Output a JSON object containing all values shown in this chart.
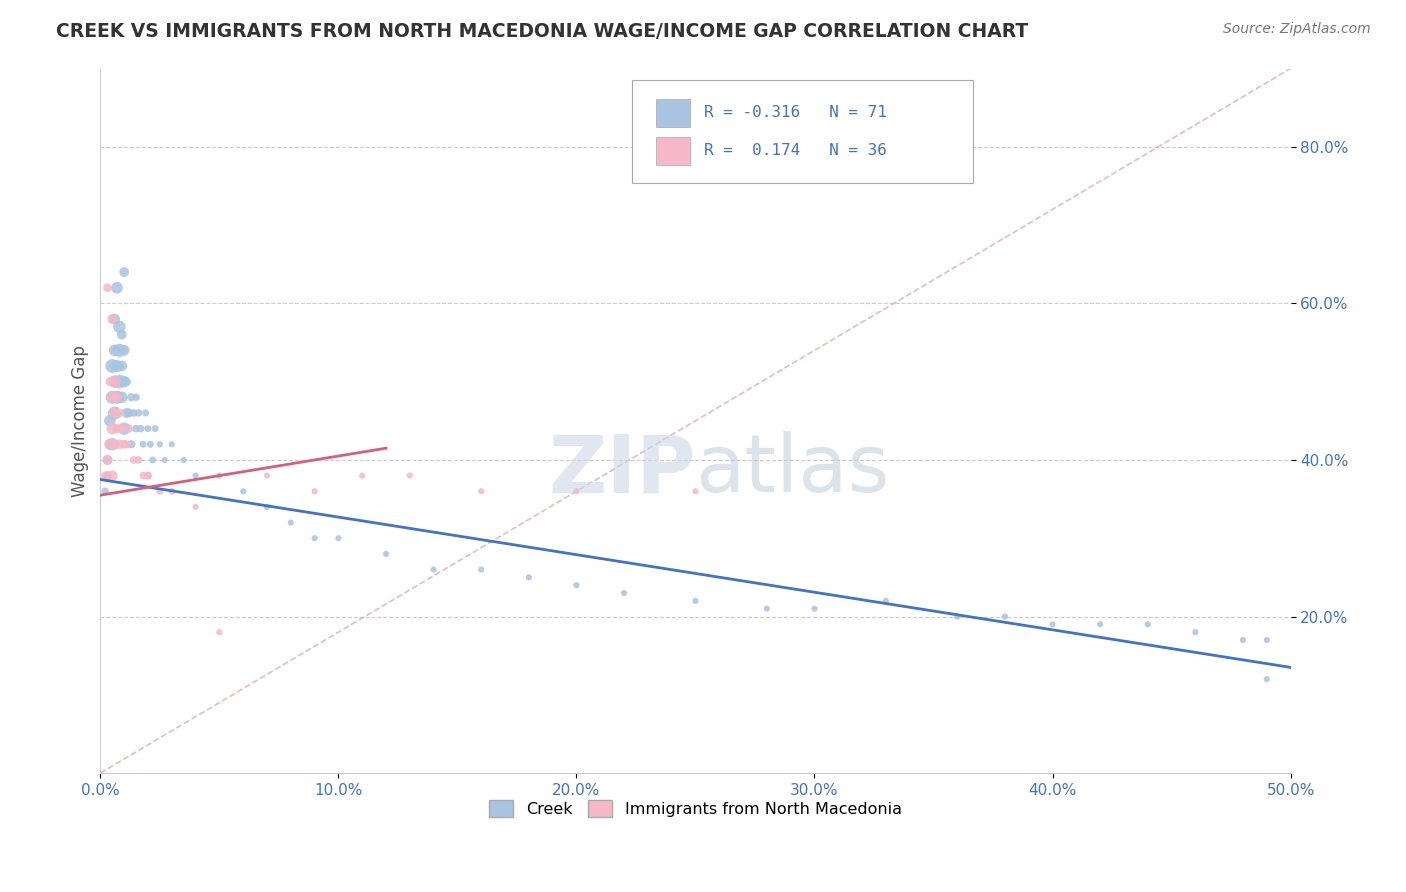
{
  "title": "CREEK VS IMMIGRANTS FROM NORTH MACEDONIA WAGE/INCOME GAP CORRELATION CHART",
  "source_text": "Source: ZipAtlas.com",
  "ylabel_text": "Wage/Income Gap",
  "xlim": [
    0.0,
    0.5
  ],
  "ylim": [
    0.0,
    0.9
  ],
  "xtick_labels": [
    "0.0%",
    "10.0%",
    "20.0%",
    "30.0%",
    "40.0%",
    "50.0%"
  ],
  "xtick_vals": [
    0.0,
    0.1,
    0.2,
    0.3,
    0.4,
    0.5
  ],
  "ytick_labels": [
    "20.0%",
    "40.0%",
    "60.0%",
    "80.0%"
  ],
  "ytick_vals": [
    0.2,
    0.4,
    0.6,
    0.8
  ],
  "creek_color": "#a8c4e0",
  "imm_color": "#f4b8c8",
  "creek_line_color": "#4472c4",
  "imm_line_color": "#d4607a",
  "creek_R": -0.316,
  "creek_N": 71,
  "imm_R": 0.174,
  "imm_N": 36,
  "diag_color": "#d0a0a8",
  "creek_x": [
    0.002,
    0.003,
    0.003,
    0.004,
    0.004,
    0.005,
    0.005,
    0.005,
    0.006,
    0.006,
    0.006,
    0.006,
    0.007,
    0.007,
    0.007,
    0.008,
    0.008,
    0.008,
    0.009,
    0.009,
    0.009,
    0.01,
    0.01,
    0.01,
    0.01,
    0.011,
    0.011,
    0.012,
    0.013,
    0.013,
    0.014,
    0.015,
    0.015,
    0.016,
    0.017,
    0.018,
    0.019,
    0.02,
    0.021,
    0.022,
    0.023,
    0.025,
    0.027,
    0.03,
    0.035,
    0.04,
    0.05,
    0.06,
    0.07,
    0.08,
    0.09,
    0.1,
    0.12,
    0.14,
    0.16,
    0.18,
    0.2,
    0.22,
    0.25,
    0.28,
    0.3,
    0.33,
    0.36,
    0.38,
    0.4,
    0.42,
    0.44,
    0.46,
    0.48,
    0.49,
    0.49
  ],
  "creek_y": [
    0.36,
    0.38,
    0.4,
    0.42,
    0.45,
    0.42,
    0.48,
    0.52,
    0.46,
    0.5,
    0.54,
    0.58,
    0.48,
    0.52,
    0.62,
    0.5,
    0.54,
    0.57,
    0.48,
    0.52,
    0.56,
    0.44,
    0.5,
    0.54,
    0.64,
    0.46,
    0.5,
    0.46,
    0.42,
    0.48,
    0.46,
    0.44,
    0.48,
    0.46,
    0.44,
    0.42,
    0.46,
    0.44,
    0.42,
    0.4,
    0.44,
    0.42,
    0.4,
    0.42,
    0.4,
    0.38,
    0.38,
    0.36,
    0.34,
    0.32,
    0.3,
    0.3,
    0.28,
    0.26,
    0.26,
    0.25,
    0.24,
    0.23,
    0.22,
    0.21,
    0.21,
    0.22,
    0.2,
    0.2,
    0.19,
    0.19,
    0.19,
    0.18,
    0.17,
    0.17,
    0.12
  ],
  "creek_sizes": [
    30,
    40,
    50,
    60,
    70,
    80,
    90,
    100,
    90,
    80,
    70,
    60,
    90,
    80,
    70,
    100,
    90,
    80,
    70,
    60,
    50,
    80,
    70,
    60,
    50,
    50,
    40,
    40,
    35,
    35,
    30,
    30,
    30,
    30,
    30,
    25,
    25,
    25,
    25,
    25,
    25,
    20,
    20,
    20,
    20,
    20,
    20,
    20,
    20,
    20,
    20,
    20,
    20,
    20,
    20,
    20,
    20,
    20,
    20,
    20,
    20,
    20,
    20,
    20,
    20,
    20,
    20,
    20,
    20,
    20,
    20
  ],
  "imm_x": [
    0.002,
    0.003,
    0.004,
    0.004,
    0.005,
    0.005,
    0.005,
    0.006,
    0.006,
    0.006,
    0.007,
    0.007,
    0.008,
    0.008,
    0.009,
    0.01,
    0.011,
    0.012,
    0.014,
    0.016,
    0.018,
    0.02,
    0.025,
    0.03,
    0.04,
    0.05,
    0.07,
    0.09,
    0.11,
    0.13,
    0.16,
    0.2,
    0.25,
    0.02,
    0.005,
    0.003
  ],
  "imm_y": [
    0.38,
    0.4,
    0.42,
    0.5,
    0.44,
    0.48,
    0.58,
    0.42,
    0.46,
    0.5,
    0.44,
    0.48,
    0.42,
    0.46,
    0.44,
    0.42,
    0.42,
    0.44,
    0.4,
    0.4,
    0.38,
    0.38,
    0.36,
    0.36,
    0.34,
    0.18,
    0.38,
    0.36,
    0.38,
    0.38,
    0.36,
    0.36,
    0.36,
    0.38,
    0.38,
    0.62
  ],
  "imm_sizes": [
    40,
    50,
    60,
    40,
    70,
    60,
    50,
    50,
    60,
    70,
    50,
    60,
    50,
    40,
    40,
    40,
    35,
    35,
    30,
    30,
    30,
    25,
    25,
    25,
    20,
    20,
    20,
    20,
    20,
    20,
    20,
    20,
    20,
    35,
    60,
    40
  ]
}
